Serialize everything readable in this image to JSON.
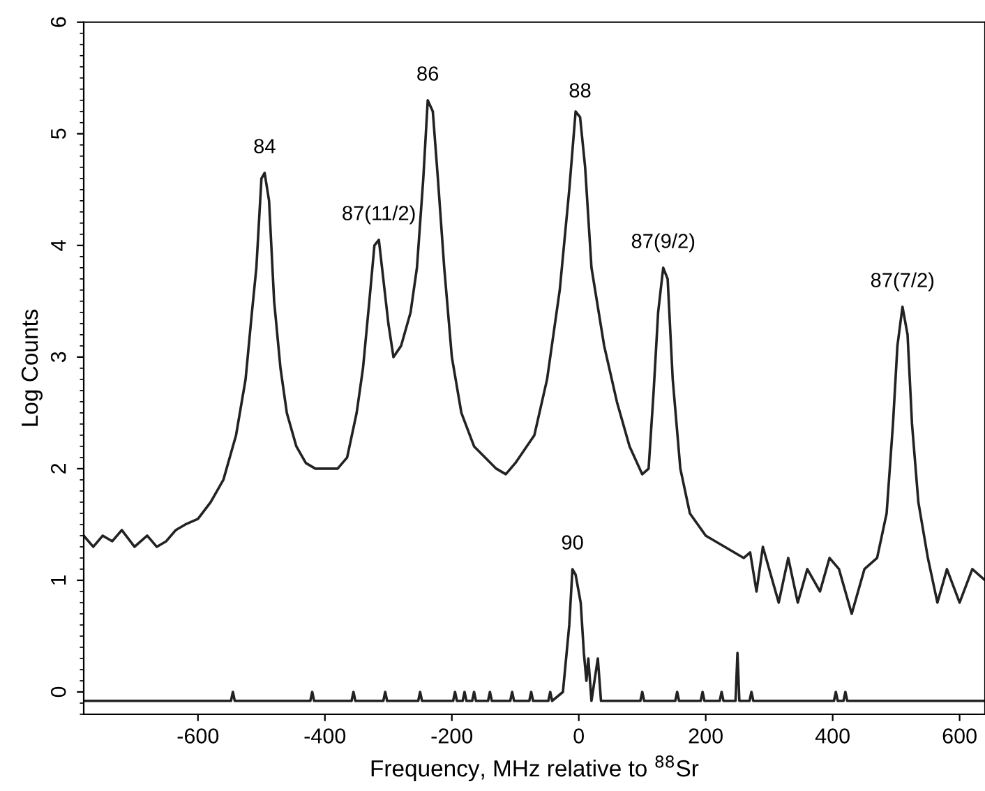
{
  "chart_data": {
    "type": "line",
    "xlabel": "Frequency, MHz relative to $^{88}$Sr",
    "ylabel": "Log Counts",
    "xlim": [
      -780,
      640
    ],
    "ylim": [
      -0.2,
      6
    ],
    "xticks": [
      -600,
      -400,
      -200,
      0,
      200,
      400,
      600
    ],
    "yticks": [
      0,
      1,
      2,
      3,
      4,
      5,
      6
    ],
    "grid": false,
    "legend": false,
    "marker": "none",
    "line_style": "solid",
    "series": [
      {
        "color": "#222222",
        "x": [
          -780,
          -765,
          -750,
          -735,
          -720,
          -700,
          -680,
          -665,
          -650,
          -635,
          -620,
          -600,
          -580,
          -560,
          -540,
          -525,
          -515,
          -508,
          -500,
          -495,
          -488,
          -480,
          -470,
          -460,
          -445,
          -430,
          -415,
          -400,
          -380,
          -365,
          -350,
          -340,
          -330,
          -322,
          -315,
          -310,
          -300,
          -292,
          -280,
          -265,
          -255,
          -245,
          -238,
          -230,
          -222,
          -212,
          -200,
          -185,
          -165,
          -130,
          -115,
          -100,
          -70,
          -50,
          -30,
          -15,
          -5,
          2,
          10,
          20,
          40,
          60,
          80,
          100,
          110,
          118,
          125,
          133,
          140,
          148,
          160,
          175,
          200,
          230,
          260,
          270,
          280,
          290,
          300,
          315,
          330,
          345,
          360,
          380,
          395,
          410,
          430,
          450,
          470,
          485,
          495,
          502,
          510,
          518,
          525,
          535,
          550,
          565,
          580,
          600,
          620,
          640
        ],
        "values": [
          1.4,
          1.3,
          1.4,
          1.35,
          1.45,
          1.3,
          1.4,
          1.3,
          1.35,
          1.45,
          1.5,
          1.55,
          1.7,
          1.9,
          2.3,
          2.8,
          3.4,
          3.8,
          4.6,
          4.65,
          4.4,
          3.5,
          2.9,
          2.5,
          2.2,
          2.05,
          2.0,
          2.0,
          2.0,
          2.1,
          2.5,
          2.9,
          3.5,
          4.0,
          4.05,
          3.8,
          3.3,
          3.0,
          3.1,
          3.4,
          3.8,
          4.6,
          5.3,
          5.2,
          4.6,
          3.8,
          3.0,
          2.5,
          2.2,
          2.0,
          1.95,
          2.05,
          2.3,
          2.8,
          3.6,
          4.5,
          5.2,
          5.15,
          4.7,
          3.8,
          3.1,
          2.6,
          2.2,
          1.95,
          2.0,
          2.7,
          3.4,
          3.8,
          3.7,
          2.8,
          2.0,
          1.6,
          1.4,
          1.3,
          1.2,
          1.25,
          0.9,
          1.3,
          1.1,
          0.8,
          1.2,
          0.8,
          1.1,
          0.9,
          1.2,
          1.1,
          0.7,
          1.1,
          1.2,
          1.6,
          2.4,
          3.1,
          3.45,
          3.2,
          2.4,
          1.7,
          1.2,
          0.8,
          1.1,
          0.8,
          1.1,
          1.0
        ]
      },
      {
        "color": "#222222",
        "x": [
          -780,
          -548,
          -545,
          -542,
          -423,
          -420,
          -417,
          -358,
          -355,
          -352,
          -308,
          -305,
          -302,
          -253,
          -250,
          -247,
          -198,
          -195,
          -192,
          -183,
          -180,
          -177,
          -168,
          -165,
          -162,
          -143,
          -140,
          -137,
          -108,
          -105,
          -102,
          -78,
          -75,
          -72,
          -48,
          -45,
          -42,
          -25,
          -15,
          -10,
          -5,
          3,
          8,
          12,
          15,
          20,
          30,
          35,
          97,
          100,
          103,
          152,
          155,
          158,
          192,
          195,
          198,
          222,
          225,
          228,
          247,
          250,
          253,
          269,
          272,
          275,
          402,
          405,
          408,
          417,
          420,
          423,
          640
        ],
        "values": [
          -0.08,
          -0.08,
          0.0,
          -0.08,
          -0.08,
          0.0,
          -0.08,
          -0.08,
          0.0,
          -0.08,
          -0.08,
          0.0,
          -0.08,
          -0.08,
          0.0,
          -0.08,
          -0.08,
          0.0,
          -0.08,
          -0.08,
          0.0,
          -0.08,
          -0.08,
          0.0,
          -0.08,
          -0.08,
          0.0,
          -0.08,
          -0.08,
          0.0,
          -0.08,
          -0.08,
          0.0,
          -0.08,
          -0.08,
          0.0,
          -0.08,
          0.0,
          0.6,
          1.1,
          1.05,
          0.8,
          0.35,
          0.1,
          0.3,
          -0.08,
          0.3,
          -0.08,
          -0.08,
          0.0,
          -0.08,
          -0.08,
          0.0,
          -0.08,
          -0.08,
          0.0,
          -0.08,
          -0.08,
          0.0,
          -0.08,
          -0.08,
          0.35,
          -0.08,
          -0.08,
          0.0,
          -0.08,
          -0.08,
          0.0,
          -0.08,
          -0.08,
          0.0,
          -0.08,
          -0.08
        ]
      }
    ],
    "annotations": [
      {
        "text": "84",
        "x": -495,
        "y": 4.65
      },
      {
        "text": "87(11/2)",
        "x": -315,
        "y": 4.05
      },
      {
        "text": "86",
        "x": -238,
        "y": 5.3
      },
      {
        "text": "88",
        "x": 2,
        "y": 5.15
      },
      {
        "text": "87(9/2)",
        "x": 133,
        "y": 3.8
      },
      {
        "text": "87(7/2)",
        "x": 510,
        "y": 3.45
      },
      {
        "text": "90",
        "x": -10,
        "y": 1.1
      }
    ]
  }
}
